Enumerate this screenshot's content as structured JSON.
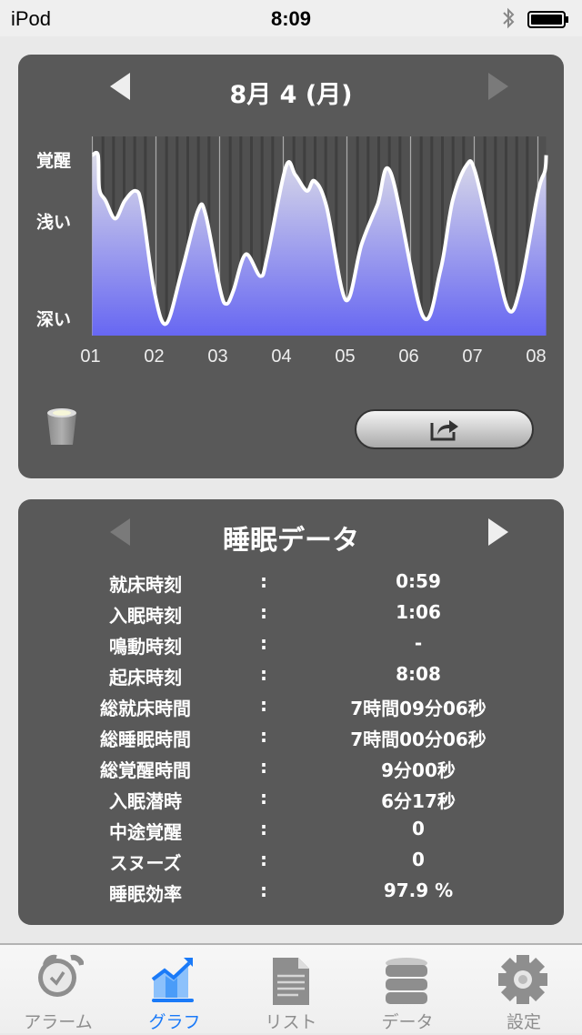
{
  "status_bar": {
    "carrier": "iPod",
    "time": "8:09"
  },
  "graph_panel": {
    "date_title": "8月 4 (月)",
    "prev_enabled": true,
    "next_enabled": false
  },
  "chart_data": {
    "type": "area",
    "title": "",
    "xlabel": "",
    "ylabel": "",
    "x_ticks": [
      "01",
      "02",
      "03",
      "04",
      "05",
      "06",
      "07",
      "08"
    ],
    "y_ticks": [
      {
        "label": "覚醒",
        "value": 89
      },
      {
        "label": "浅い",
        "value": 58
      },
      {
        "label": "深い",
        "value": 9
      }
    ],
    "ylim": [
      0,
      100
    ],
    "xlim_hours": [
      1.0,
      8.13
    ],
    "grid": true,
    "fill_colors": [
      "#dcdce8",
      "#6767f2"
    ],
    "line_color": "#ffffff",
    "points": [
      [
        1.0,
        91
      ],
      [
        1.09,
        91
      ],
      [
        1.11,
        74
      ],
      [
        1.21,
        68
      ],
      [
        1.36,
        59
      ],
      [
        1.51,
        68
      ],
      [
        1.68,
        73
      ],
      [
        1.78,
        65
      ],
      [
        1.97,
        23
      ],
      [
        2.16,
        6
      ],
      [
        2.41,
        33
      ],
      [
        2.66,
        63
      ],
      [
        2.78,
        61
      ],
      [
        3.01,
        23
      ],
      [
        3.11,
        16
      ],
      [
        3.22,
        23
      ],
      [
        3.41,
        41
      ],
      [
        3.64,
        30
      ],
      [
        3.75,
        40
      ],
      [
        4.04,
        85
      ],
      [
        4.19,
        81
      ],
      [
        4.37,
        73
      ],
      [
        4.49,
        78
      ],
      [
        4.68,
        65
      ],
      [
        4.98,
        18
      ],
      [
        5.23,
        46
      ],
      [
        5.48,
        66
      ],
      [
        5.69,
        82
      ],
      [
        6.19,
        10
      ],
      [
        6.47,
        33
      ],
      [
        6.66,
        68
      ],
      [
        6.88,
        86
      ],
      [
        7.01,
        83
      ],
      [
        7.29,
        45
      ],
      [
        7.54,
        13
      ],
      [
        7.73,
        25
      ],
      [
        8.0,
        72
      ],
      [
        8.11,
        83
      ],
      [
        8.13,
        91
      ]
    ]
  },
  "sleep_panel": {
    "title": "睡眠データ",
    "prev_enabled": false,
    "next_enabled": true,
    "rows": [
      {
        "label": "就床時刻",
        "value": "0:59"
      },
      {
        "label": "入眠時刻",
        "value": "1:06"
      },
      {
        "label": "鳴動時刻",
        "value": "-"
      },
      {
        "label": "起床時刻",
        "value": "8:08"
      },
      {
        "label": "総就床時間",
        "value": "7時間09分06秒"
      },
      {
        "label": "総睡眠時間",
        "value": "7時間00分06秒"
      },
      {
        "label": "総覚醒時間",
        "value": "9分00秒"
      },
      {
        "label": "入眠潜時",
        "value": "6分17秒"
      },
      {
        "label": "中途覚醒",
        "value": "0"
      },
      {
        "label": "スヌーズ",
        "value": "0"
      },
      {
        "label": "睡眠効率",
        "value": "97.9 %"
      }
    ],
    "separator": ":"
  },
  "tabbar": {
    "active_color": "#1a7af8",
    "inactive_color": "#8e8e8e",
    "items": [
      {
        "label": "アラーム",
        "icon": "alarm-clock-icon"
      },
      {
        "label": "グラフ",
        "icon": "chart-icon",
        "active": true
      },
      {
        "label": "リスト",
        "icon": "document-icon"
      },
      {
        "label": "データ",
        "icon": "database-icon"
      },
      {
        "label": "設定",
        "icon": "gear-icon"
      }
    ]
  }
}
